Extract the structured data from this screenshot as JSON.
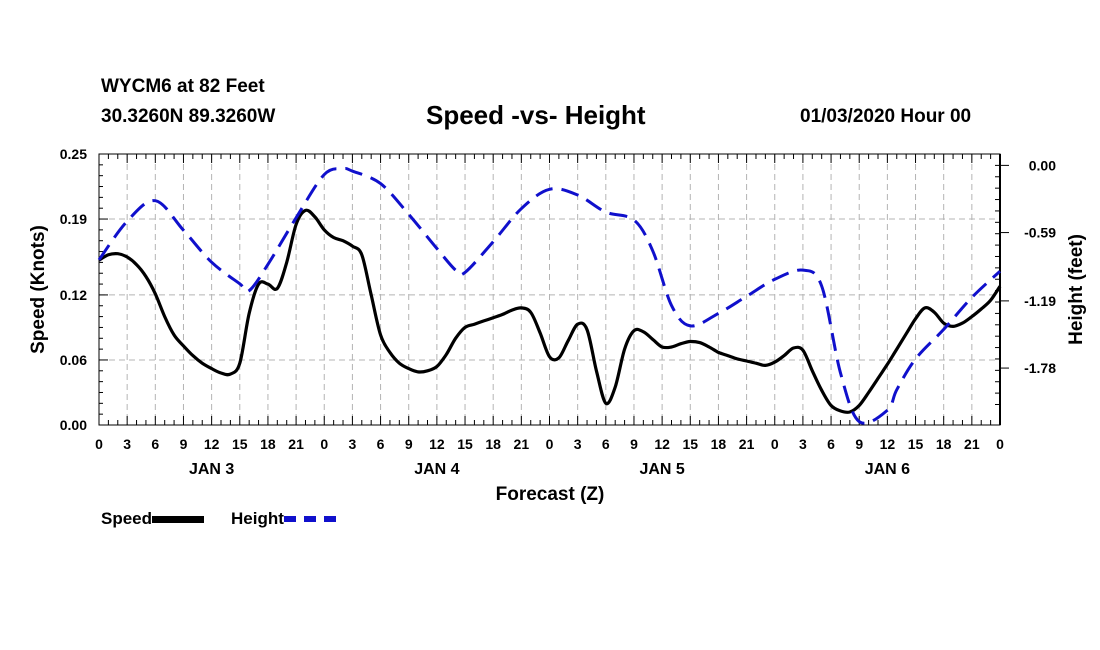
{
  "header": {
    "station": "WYCM6 at 82 Feet",
    "coords": "30.3260N 89.3260W",
    "title": "Speed -vs- Height",
    "datetime": "01/03/2020 Hour 00"
  },
  "legend": {
    "speed": "Speed",
    "height": "Height"
  },
  "colors": {
    "speed": "#000000",
    "height": "#1010cc",
    "grid": "#b4b4b4"
  },
  "chart_data": {
    "type": "line",
    "title": "Speed -vs- Height",
    "xlabel": "Forecast (Z)",
    "ylabel": "Speed (Knots)",
    "y2label": "Height (feet)",
    "xlim": [
      0,
      96
    ],
    "ylim": [
      0,
      0.25
    ],
    "y2lim": [
      -2.28,
      0.1
    ],
    "x_ticks": [
      0,
      3,
      6,
      9,
      12,
      15,
      18,
      21,
      24,
      27,
      30,
      33,
      36,
      39,
      42,
      45,
      48,
      51,
      54,
      57,
      60,
      63,
      66,
      69,
      72,
      75,
      78,
      81,
      84,
      87,
      90,
      93,
      96
    ],
    "x_tick_labels": [
      "0",
      "3",
      "6",
      "9",
      "12",
      "15",
      "18",
      "21",
      "0",
      "3",
      "6",
      "9",
      "12",
      "15",
      "18",
      "21",
      "0",
      "3",
      "6",
      "9",
      "12",
      "15",
      "18",
      "21",
      "0",
      "3",
      "6",
      "9",
      "12",
      "15",
      "18",
      "21",
      "0"
    ],
    "day_labels": [
      {
        "label": "JAN 3",
        "x": 12
      },
      {
        "label": "JAN 4",
        "x": 36
      },
      {
        "label": "JAN 5",
        "x": 60
      },
      {
        "label": "JAN 6",
        "x": 84
      }
    ],
    "y_ticks": [
      0.0,
      0.06,
      0.12,
      0.19,
      0.25
    ],
    "y_tick_labels": [
      "0.00",
      "0.06",
      "0.12",
      "0.19",
      "0.25"
    ],
    "y2_ticks": [
      0.0,
      -0.59,
      -1.19,
      -1.78
    ],
    "y2_tick_labels": [
      "0.00",
      "-0.59",
      "-1.19",
      "-1.78"
    ],
    "series": [
      {
        "name": "Speed",
        "axis": "left",
        "style": "solid",
        "x": [
          0,
          1,
          2,
          3,
          4,
          5,
          6,
          7,
          8,
          9,
          10,
          11,
          12,
          13,
          14,
          15,
          16,
          17,
          18,
          19,
          20,
          21,
          22,
          23,
          24,
          25,
          26,
          27,
          28,
          29,
          30,
          31,
          32,
          33,
          34,
          35,
          36,
          37,
          38,
          39,
          40,
          41,
          42,
          43,
          44,
          45,
          46,
          47,
          48,
          49,
          50,
          51,
          52,
          53,
          54,
          55,
          56,
          57,
          58,
          59,
          60,
          61,
          62,
          63,
          64,
          65,
          66,
          67,
          68,
          69,
          70,
          71,
          72,
          73,
          74,
          75,
          76,
          77,
          78,
          79,
          80,
          81,
          82,
          83,
          84,
          85,
          86,
          87,
          88,
          89,
          90,
          91,
          92,
          93,
          94,
          95,
          96
        ],
        "values": [
          0.152,
          0.157,
          0.158,
          0.155,
          0.148,
          0.137,
          0.121,
          0.1,
          0.083,
          0.073,
          0.064,
          0.057,
          0.052,
          0.048,
          0.047,
          0.057,
          0.103,
          0.13,
          0.13,
          0.126,
          0.15,
          0.185,
          0.198,
          0.192,
          0.18,
          0.173,
          0.17,
          0.165,
          0.157,
          0.12,
          0.083,
          0.067,
          0.057,
          0.052,
          0.049,
          0.05,
          0.054,
          0.065,
          0.08,
          0.09,
          0.093,
          0.096,
          0.099,
          0.102,
          0.106,
          0.108,
          0.104,
          0.085,
          0.063,
          0.062,
          0.078,
          0.093,
          0.088,
          0.05,
          0.02,
          0.035,
          0.07,
          0.087,
          0.086,
          0.079,
          0.072,
          0.072,
          0.075,
          0.077,
          0.076,
          0.072,
          0.067,
          0.064,
          0.061,
          0.059,
          0.057,
          0.055,
          0.058,
          0.064,
          0.071,
          0.069,
          0.05,
          0.032,
          0.018,
          0.013,
          0.012,
          0.018,
          0.03,
          0.043,
          0.056,
          0.07,
          0.084,
          0.098,
          0.108,
          0.104,
          0.094,
          0.091,
          0.094,
          0.1,
          0.107,
          0.115,
          0.128
        ]
      },
      {
        "name": "Height",
        "axis": "right",
        "style": "dashed",
        "x": [
          0,
          3,
          6,
          9,
          12,
          15,
          16,
          18,
          21,
          24,
          26,
          27,
          30,
          33,
          36,
          38,
          39,
          42,
          45,
          48,
          51,
          54,
          57,
          59,
          61,
          63,
          66,
          69,
          72,
          75,
          77,
          79,
          81,
          84,
          85,
          87,
          90,
          93,
          96
        ],
        "values": [
          -0.83,
          -0.49,
          -0.31,
          -0.57,
          -0.85,
          -1.04,
          -1.1,
          -0.87,
          -0.46,
          -0.08,
          -0.03,
          -0.05,
          -0.16,
          -0.43,
          -0.73,
          -0.92,
          -0.94,
          -0.67,
          -0.38,
          -0.21,
          -0.26,
          -0.41,
          -0.48,
          -0.75,
          -1.23,
          -1.41,
          -1.3,
          -1.15,
          -1.0,
          -0.92,
          -1.06,
          -1.82,
          -2.25,
          -2.15,
          -1.97,
          -1.7,
          -1.44,
          -1.16,
          -0.93
        ]
      }
    ]
  }
}
